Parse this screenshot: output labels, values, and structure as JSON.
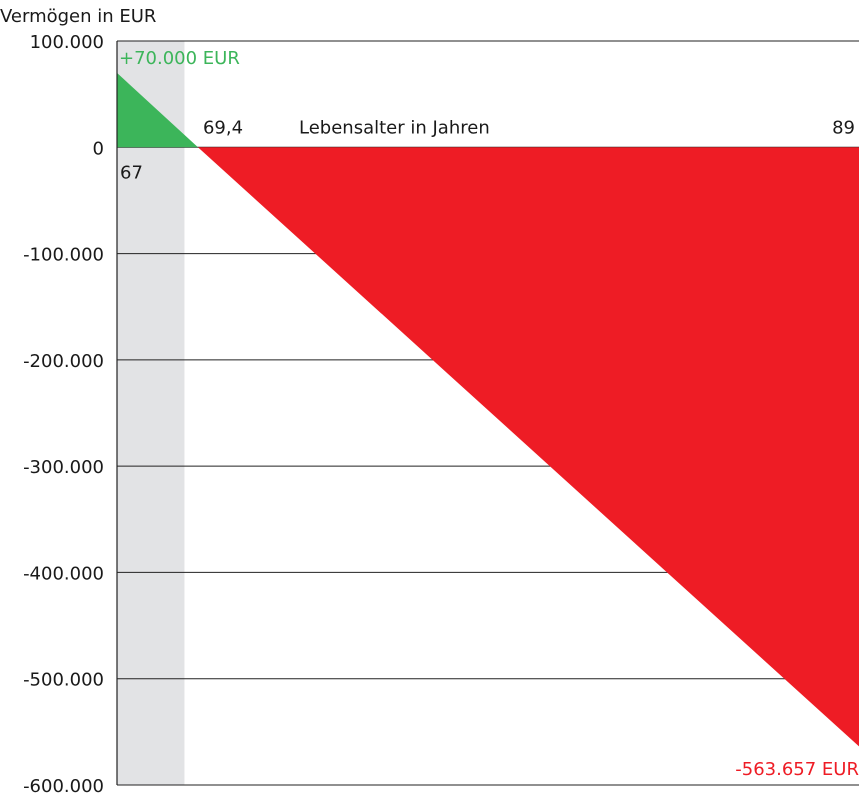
{
  "chart_data": {
    "type": "area",
    "ylabel": "Vermögen in EUR",
    "xlabel": "Lebensalter in Jahren",
    "ylim": [
      -600000,
      100000
    ],
    "xlim": [
      67,
      89
    ],
    "y_ticks": [
      100000,
      0,
      -100000,
      -200000,
      -300000,
      -400000,
      -500000,
      -600000
    ],
    "y_tick_labels": [
      "100.000",
      "0",
      "-100.000",
      "-200.000",
      "-300.000",
      "-400.000",
      "-500.000",
      "-600.000"
    ],
    "shaded_band": [
      67,
      69
    ],
    "series": [
      {
        "x": [
          67,
          69.4
        ],
        "y": [
          70000,
          0
        ],
        "color": "#3cb55a"
      },
      {
        "x": [
          69.4,
          89
        ],
        "y": [
          0,
          -563657
        ],
        "color": "#ee1c25"
      }
    ],
    "annotations": {
      "start_value": "+70.000 EUR",
      "end_value": "-563.657 EUR",
      "start_age": "67",
      "zero_age": "69,4",
      "end_age": "89"
    },
    "colors": {
      "positive": "#3cb55a",
      "negative": "#ee1c25",
      "band": "#e2e3e5",
      "grid": "#222222"
    }
  }
}
